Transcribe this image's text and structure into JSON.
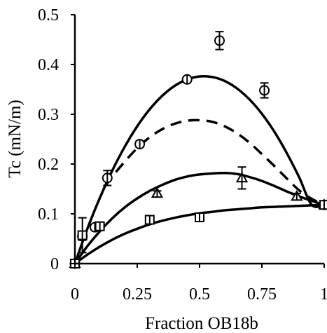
{
  "chart_data": {
    "type": "scatter",
    "title": "",
    "xlabel": "Fraction OB18b",
    "ylabel": "Tc (mN/m)",
    "xlim": [
      0,
      1
    ],
    "ylim": [
      0,
      0.5
    ],
    "x_ticks": [
      "0",
      "0.25",
      "0.5",
      "0.75",
      "1"
    ],
    "y_ticks": [
      "0",
      "0.1",
      "0.2",
      "0.3",
      "0.4",
      "0.5"
    ],
    "x_tick_values": [
      0,
      0.25,
      0.5,
      0.75,
      1
    ],
    "y_tick_values": [
      0,
      0.1,
      0.2,
      0.3,
      0.4,
      0.5
    ],
    "grid": false,
    "legend": "none",
    "series": [
      {
        "marker": "circle",
        "points": [
          {
            "x": 0.0,
            "y": 0.0,
            "err": 0.0
          },
          {
            "x": 0.03,
            "y": 0.055,
            "err": 0.008
          },
          {
            "x": 0.08,
            "y": 0.073,
            "err": 0.006
          },
          {
            "x": 0.13,
            "y": 0.172,
            "err": 0.015
          },
          {
            "x": 0.26,
            "y": 0.24,
            "err": 0.006
          },
          {
            "x": 0.45,
            "y": 0.37,
            "err": 0.006
          },
          {
            "x": 0.58,
            "y": 0.448,
            "err": 0.018
          },
          {
            "x": 0.76,
            "y": 0.348,
            "err": 0.015
          },
          {
            "x": 1.0,
            "y": 0.118,
            "err": 0.005
          }
        ]
      },
      {
        "marker": "triangle",
        "points": [
          {
            "x": 0.0,
            "y": 0.0,
            "err": 0.0
          },
          {
            "x": 0.33,
            "y": 0.141,
            "err": 0.005
          },
          {
            "x": 0.67,
            "y": 0.172,
            "err": 0.022
          },
          {
            "x": 0.89,
            "y": 0.135,
            "err": 0.006
          },
          {
            "x": 1.0,
            "y": 0.118,
            "err": 0.005
          }
        ]
      },
      {
        "marker": "square",
        "points": [
          {
            "x": 0.0,
            "y": 0.0,
            "err": 0.0
          },
          {
            "x": 0.03,
            "y": 0.057,
            "err": 0.035
          },
          {
            "x": 0.1,
            "y": 0.075,
            "err": 0.006
          },
          {
            "x": 0.3,
            "y": 0.088,
            "err": 0.008
          },
          {
            "x": 0.5,
            "y": 0.093,
            "err": 0.006
          },
          {
            "x": 1.0,
            "y": 0.118,
            "err": 0.005
          }
        ]
      }
    ],
    "fit_curves": [
      {
        "style": "solid",
        "x": [
          0,
          0.05,
          0.1,
          0.15,
          0.2,
          0.25,
          0.3,
          0.35,
          0.4,
          0.45,
          0.5,
          0.55,
          0.6,
          0.65,
          0.7,
          0.75,
          0.8,
          0.85,
          0.9,
          0.95,
          1.0
        ],
        "y": [
          0,
          0.07,
          0.132,
          0.187,
          0.235,
          0.276,
          0.31,
          0.337,
          0.357,
          0.37,
          0.376,
          0.375,
          0.367,
          0.352,
          0.33,
          0.301,
          0.265,
          0.222,
          0.173,
          0.118,
          0.118
        ]
      },
      {
        "style": "dashed",
        "x": [
          0.12,
          0.15,
          0.2,
          0.25,
          0.3,
          0.35,
          0.4,
          0.45,
          0.5,
          0.55,
          0.6,
          0.65,
          0.7,
          0.75,
          0.8,
          0.85,
          0.9,
          0.95,
          1.0
        ],
        "y": [
          0.155,
          0.175,
          0.205,
          0.232,
          0.254,
          0.27,
          0.281,
          0.287,
          0.288,
          0.285,
          0.276,
          0.262,
          0.243,
          0.22,
          0.196,
          0.171,
          0.147,
          0.13,
          0.118
        ]
      },
      {
        "style": "solid",
        "x": [
          0,
          0.05,
          0.1,
          0.15,
          0.2,
          0.25,
          0.3,
          0.35,
          0.4,
          0.45,
          0.5,
          0.55,
          0.6,
          0.65,
          0.7,
          0.75,
          0.8,
          0.85,
          0.9,
          0.95,
          1.0
        ],
        "y": [
          0,
          0.035,
          0.065,
          0.091,
          0.113,
          0.131,
          0.146,
          0.158,
          0.168,
          0.175,
          0.179,
          0.181,
          0.182,
          0.18,
          0.174,
          0.166,
          0.156,
          0.145,
          0.135,
          0.126,
          0.118
        ]
      },
      {
        "style": "solid",
        "x": [
          0,
          0.05,
          0.1,
          0.15,
          0.2,
          0.25,
          0.3,
          0.35,
          0.4,
          0.45,
          0.5,
          0.55,
          0.6,
          0.65,
          0.7,
          0.75,
          0.8,
          0.85,
          0.9,
          0.95,
          1.0
        ],
        "y": [
          0,
          0.018,
          0.034,
          0.048,
          0.06,
          0.07,
          0.079,
          0.086,
          0.092,
          0.097,
          0.101,
          0.104,
          0.107,
          0.109,
          0.111,
          0.113,
          0.114,
          0.115,
          0.116,
          0.117,
          0.118
        ]
      }
    ]
  }
}
